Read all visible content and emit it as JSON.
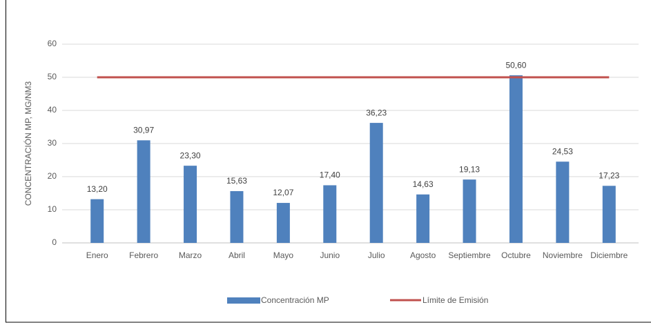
{
  "chart_data": {
    "type": "bar",
    "y_label": "CONCENTRACIÓN MP, MG/NM3",
    "categories": [
      "Enero",
      "Febrero",
      "Marzo",
      "Abril",
      "Mayo",
      "Junio",
      "Julio",
      "Agosto",
      "Septiembre",
      "Octubre",
      "Noviembre",
      "Diciembre"
    ],
    "series": [
      {
        "name": "Concentración MP",
        "type": "bar",
        "color": "#4f81bd",
        "values": [
          13.2,
          30.97,
          23.3,
          15.63,
          12.07,
          17.4,
          36.23,
          14.63,
          19.13,
          50.6,
          24.53,
          17.23
        ],
        "value_labels": [
          "13,20",
          "30,97",
          "23,30",
          "15,63",
          "12,07",
          "17,40",
          "36,23",
          "14,63",
          "19,13",
          "50,60",
          "24,53",
          "17,23"
        ]
      },
      {
        "name": "Límite de Emisión",
        "type": "line",
        "color": "#c0504d",
        "values": [
          50,
          50,
          50,
          50,
          50,
          50,
          50,
          50,
          50,
          50,
          50,
          50
        ]
      }
    ],
    "ylim": [
      0,
      60
    ],
    "yticks": [
      0,
      10,
      20,
      30,
      40,
      50,
      60
    ],
    "grid": true,
    "legend": "bottom"
  }
}
